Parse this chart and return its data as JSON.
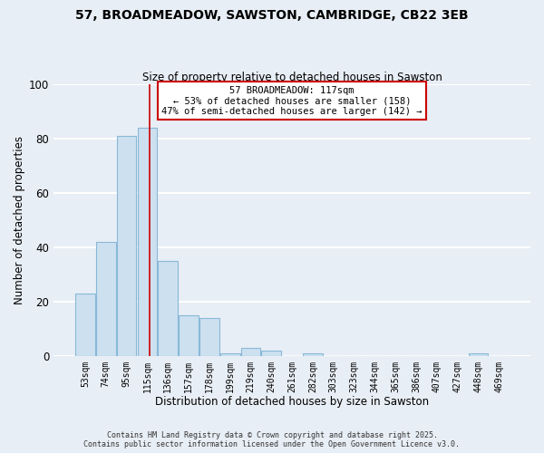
{
  "title": "57, BROADMEADOW, SAWSTON, CAMBRIDGE, CB22 3EB",
  "subtitle": "Size of property relative to detached houses in Sawston",
  "xlabel": "Distribution of detached houses by size in Sawston",
  "ylabel": "Number of detached properties",
  "bar_color": "#cce0f0",
  "bar_edge_color": "#89b8d8",
  "categories": [
    "53sqm",
    "74sqm",
    "95sqm",
    "115sqm",
    "136sqm",
    "157sqm",
    "178sqm",
    "199sqm",
    "219sqm",
    "240sqm",
    "261sqm",
    "282sqm",
    "303sqm",
    "323sqm",
    "344sqm",
    "365sqm",
    "386sqm",
    "407sqm",
    "427sqm",
    "448sqm",
    "469sqm"
  ],
  "values": [
    23,
    42,
    81,
    84,
    35,
    15,
    14,
    1,
    3,
    2,
    0,
    1,
    0,
    0,
    0,
    0,
    0,
    0,
    0,
    1,
    0
  ],
  "ylim": [
    0,
    100
  ],
  "yticks": [
    0,
    20,
    40,
    60,
    80,
    100
  ],
  "annotation_title": "57 BROADMEADOW: 117sqm",
  "annotation_line1": "← 53% of detached houses are smaller (158)",
  "annotation_line2": "47% of semi-detached houses are larger (142) →",
  "annotation_box_facecolor": "white",
  "annotation_box_edgecolor": "#cc0000",
  "property_line_color": "#cc0000",
  "footer_line1": "Contains HM Land Registry data © Crown copyright and database right 2025.",
  "footer_line2": "Contains public sector information licensed under the Open Government Licence v3.0.",
  "background_color": "#e8eef5",
  "grid_color": "white"
}
